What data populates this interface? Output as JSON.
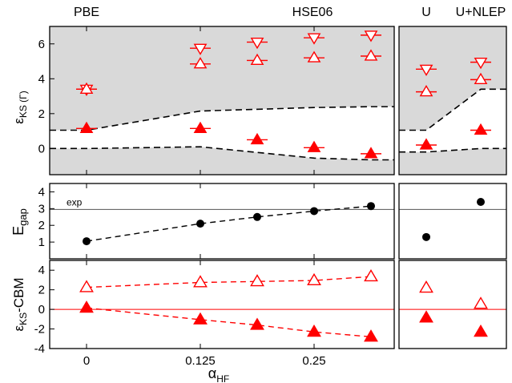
{
  "chart_data": [
    {
      "type": "scatter",
      "panel": "KS energies at Gamma",
      "ylabel_main": "ε",
      "ylabel_sub": "KS (Γ)",
      "ylim": [
        -1.5,
        7
      ],
      "yticks": [
        0,
        2,
        4,
        6
      ],
      "methods": [
        "PBE",
        "HSE06",
        "U",
        "U+NLEP"
      ],
      "x_hf": [
        0,
        0.125,
        0.1875,
        0.25,
        0.3125
      ],
      "x_right": [
        "U",
        "U+NLEP"
      ],
      "band_edges": {
        "cbm": {
          "x": [
            0,
            0.125,
            0.25,
            0.3125
          ],
          "y": [
            1.05,
            2.15,
            2.35,
            2.4
          ]
        },
        "vbm": {
          "x": [
            0,
            0.125,
            0.25,
            0.3125
          ],
          "y": [
            0.0,
            0.1,
            -0.55,
            -0.65
          ]
        },
        "right_cbm": [
          1.05,
          3.4
        ],
        "right_vbm": [
          -0.2,
          0.0
        ]
      },
      "series": [
        {
          "marker": "triangle-down-open",
          "values": [
            3.4,
            5.75,
            6.1,
            6.35,
            6.5
          ],
          "right_values": [
            4.55,
            4.95
          ]
        },
        {
          "marker": "triangle-up-open",
          "values": [
            3.4,
            4.85,
            5.05,
            5.2,
            5.3
          ],
          "right_values": [
            3.25,
            3.95
          ]
        },
        {
          "marker": "triangle-up-filled",
          "values": [
            1.15,
            1.15,
            0.5,
            0.05,
            -0.3
          ],
          "right_values": [
            0.2,
            1.05
          ]
        }
      ]
    },
    {
      "type": "scatter",
      "panel": "Band gap",
      "ylabel_main": "E",
      "ylabel_sub": "gap",
      "ylim": [
        0,
        4.5
      ],
      "yticks": [
        1,
        2,
        3,
        4
      ],
      "reference_line": {
        "label": "exp",
        "value": 2.95
      },
      "x_hf": [
        0,
        0.125,
        0.1875,
        0.25,
        0.3125
      ],
      "values": [
        1.05,
        2.1,
        2.5,
        2.85,
        3.15
      ],
      "right_values": [
        1.3,
        3.4
      ]
    },
    {
      "type": "scatter",
      "panel": "KS energies relative to CBM",
      "ylabel_main": "ε",
      "ylabel_sub": "KS",
      "ylabel_suffix": "-CBM",
      "ylim": [
        -4,
        5
      ],
      "yticks": [
        -4,
        -2,
        0,
        2,
        4
      ],
      "xlabel_main": "α",
      "xlabel_sub": "HF",
      "xticks": [
        "0",
        "0.125",
        "0.25"
      ],
      "x_hf": [
        0,
        0.125,
        0.1875,
        0.25,
        0.3125
      ],
      "series": [
        {
          "marker": "triangle-up-open",
          "values": [
            2.25,
            2.75,
            2.85,
            2.95,
            3.35
          ],
          "right_values": [
            2.2,
            0.55
          ]
        },
        {
          "marker": "triangle-up-filled",
          "values": [
            0.15,
            -1.05,
            -1.6,
            -2.3,
            -2.8
          ],
          "right_values": [
            -0.85,
            -2.3
          ]
        }
      ]
    }
  ],
  "colors": {
    "accent": "#ff0000",
    "shade": "#d9d9d9",
    "black": "#000000",
    "ref_line": "#555555"
  }
}
